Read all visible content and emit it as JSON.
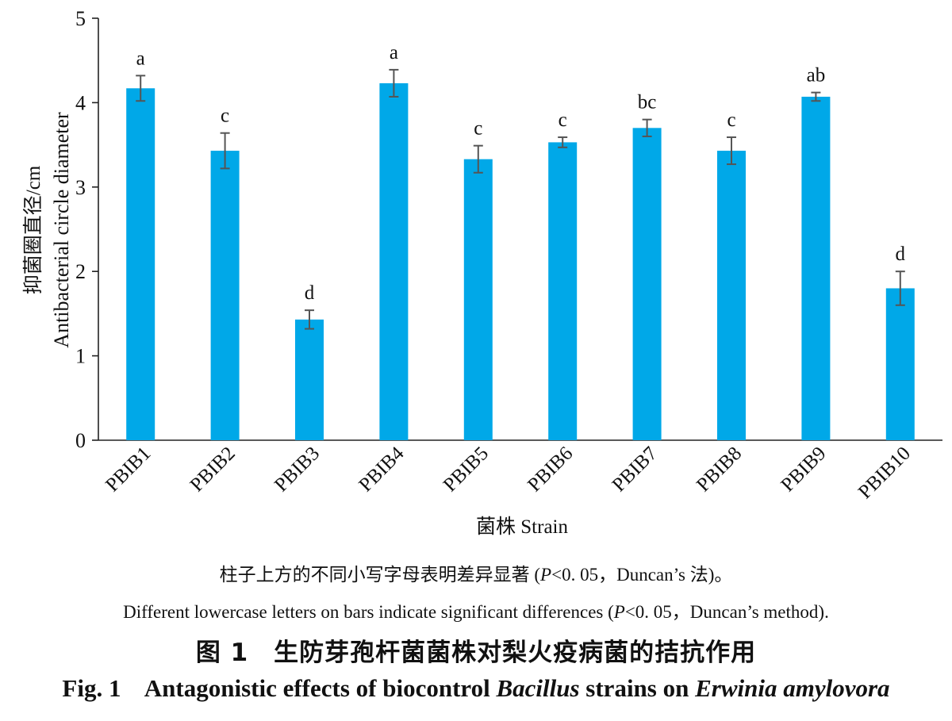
{
  "chart_data": {
    "type": "bar",
    "categories": [
      "PBIB1",
      "PBIB2",
      "PBIB3",
      "PBIB4",
      "PBIB5",
      "PBIB6",
      "PBIB7",
      "PBIB8",
      "PBIB9",
      "PBIB10"
    ],
    "values": [
      4.17,
      3.43,
      1.43,
      4.23,
      3.33,
      3.53,
      3.7,
      3.43,
      4.07,
      1.8
    ],
    "errors": [
      0.15,
      0.21,
      0.11,
      0.16,
      0.16,
      0.06,
      0.1,
      0.16,
      0.05,
      0.2
    ],
    "significance_letters": [
      "a",
      "c",
      "d",
      "a",
      "c",
      "c",
      "bc",
      "c",
      "ab",
      "d"
    ],
    "xlabel": "菌株 Strain",
    "ylabel_zh": "抑菌圈直径/cm",
    "ylabel_en": "Antibacterial circle diameter",
    "ylim": [
      0,
      5
    ],
    "yticks": [
      0,
      1,
      2,
      3,
      4,
      5
    ],
    "bar_color": "#00a8e8",
    "error_color": "#555555",
    "grid": false
  },
  "captions": {
    "note_zh_pre": "柱子上方的不同小写字母表明差异显著 (",
    "note_zh_p": "P",
    "note_zh_post": "<0. 05，Duncan’s 法)。",
    "note_en_pre": "Different lowercase letters on bars indicate significant differences (",
    "note_en_p": "P",
    "note_en_post": "<0. 05，Duncan’s method).",
    "fig_zh": "图 1　生防芽孢杆菌菌株对梨火疫病菌的拮抗作用",
    "fig_en_pre": "Fig. 1    Antagonistic effects of biocontrol ",
    "fig_en_genus1": "Bacillus",
    "fig_en_mid": " strains on ",
    "fig_en_genus2": "Erwinia amylovora"
  }
}
